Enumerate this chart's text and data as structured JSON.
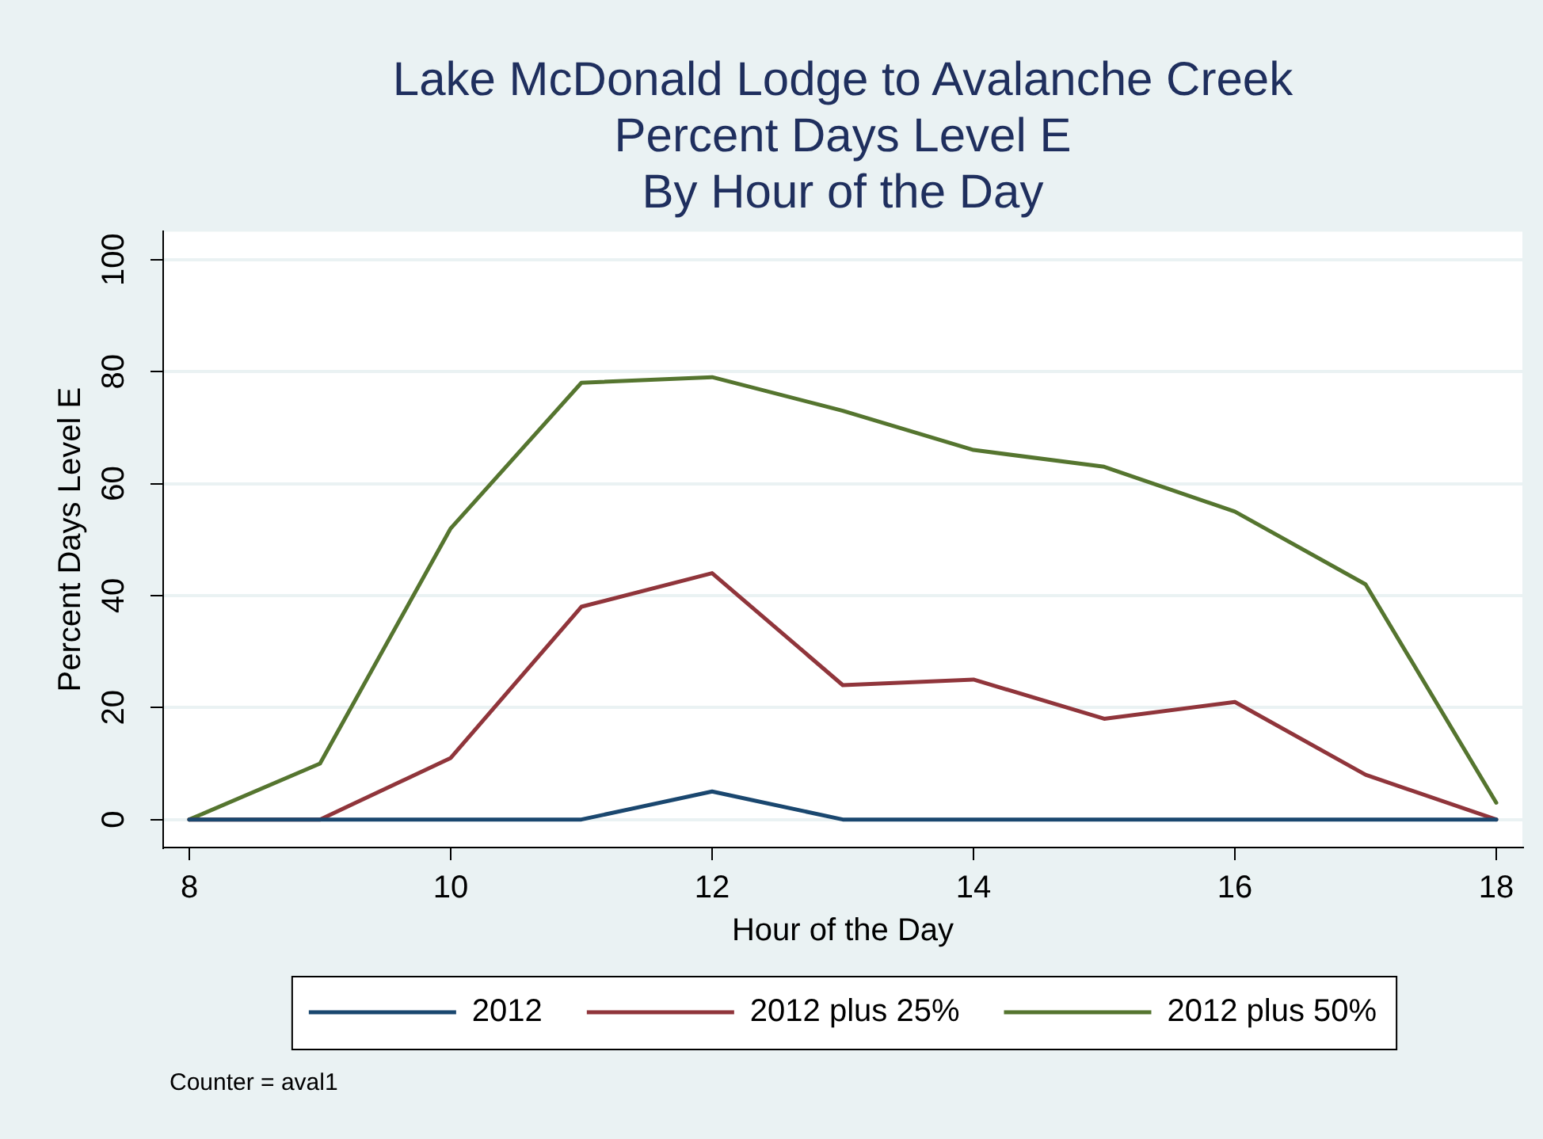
{
  "chart_data": {
    "type": "line",
    "title": "Lake McDonald Lodge to Avalanche Creek\nPercent Days Level E\nBy Hour of the Day",
    "xlabel": "Hour of the Day",
    "ylabel": "Percent Days Level E",
    "x": [
      8,
      9,
      10,
      11,
      12,
      13,
      14,
      15,
      16,
      17,
      18
    ],
    "series": [
      {
        "name": "2012",
        "color": "#1a476f",
        "values": [
          0,
          0,
          0,
          0,
          5,
          0,
          0,
          0,
          0,
          0,
          0
        ]
      },
      {
        "name": "2012 plus 25%",
        "color": "#90353b",
        "values": [
          0,
          0,
          11,
          38,
          44,
          24,
          25,
          18,
          21,
          8,
          0
        ]
      },
      {
        "name": "2012 plus 50%",
        "color": "#55752f",
        "values": [
          0,
          10,
          52,
          78,
          79,
          73,
          66,
          63,
          55,
          42,
          3
        ]
      }
    ],
    "xlim": [
      7.8,
      18.2
    ],
    "ylim": [
      -5,
      105
    ],
    "xticks": [
      8,
      10,
      12,
      14,
      16,
      18
    ],
    "yticks": [
      0,
      20,
      40,
      60,
      80,
      100
    ],
    "grid": "y",
    "legend": "bottom",
    "line_style": "solid",
    "annotations": [
      "Counter = aval1"
    ]
  }
}
